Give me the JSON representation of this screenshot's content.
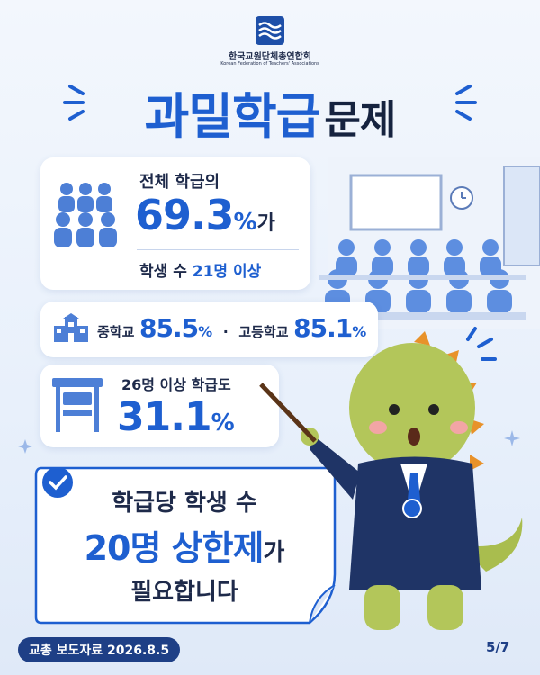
{
  "logo": {
    "org_korean": "한국교원단체총연합회",
    "org_english": "Korean Federation of Teachers' Associations"
  },
  "title": {
    "highlight": "과밀학급",
    "rest": "문제"
  },
  "card_total": {
    "line1": "전체 학급의",
    "number": "69.3",
    "unit": "%",
    "particle": "가",
    "prefix": "학생 수",
    "highlight": "21명",
    "suffix": "이상"
  },
  "card_levels": {
    "items": [
      {
        "label": "중학교",
        "number": "85.5",
        "unit": "%"
      },
      {
        "label": "고등학교",
        "number": "85.1",
        "unit": "%"
      }
    ],
    "separator": "·"
  },
  "card_26": {
    "line1": "26명 이상 학급도",
    "number": "31.1",
    "unit": "%"
  },
  "callout": {
    "line1": "학급당 학생 수",
    "highlight": "20명 상한제",
    "particle": "가",
    "line3": "필요합니다"
  },
  "footer": {
    "source": "교총 보도자료 2026.8.5",
    "page": "5/7"
  }
}
